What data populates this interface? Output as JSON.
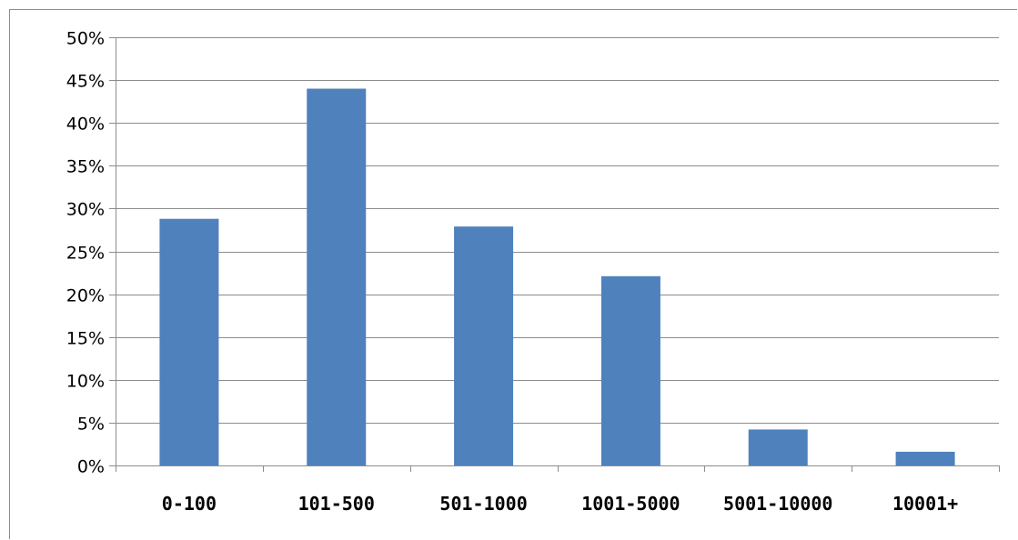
{
  "chart_data": {
    "type": "bar",
    "title": "",
    "xlabel": "",
    "ylabel": "",
    "categories": [
      "0-100",
      "101-500",
      "501-1000",
      "1001-5000",
      "5001-10000",
      "10001+"
    ],
    "values": [
      28.8,
      44.0,
      27.9,
      22.1,
      4.2,
      1.6
    ],
    "ylim": [
      0,
      50
    ],
    "y_ticks": [
      0,
      5,
      10,
      15,
      20,
      25,
      30,
      35,
      40,
      45,
      50
    ],
    "y_tick_labels": [
      "0%",
      "5%",
      "10%",
      "15%",
      "20%",
      "25%",
      "30%",
      "35%",
      "40%",
      "45%",
      "50%"
    ],
    "y_unit": "%",
    "grid": true,
    "legend": "none",
    "bar_color": "#4F81BD",
    "gridline_color": "#8C8C8C"
  }
}
